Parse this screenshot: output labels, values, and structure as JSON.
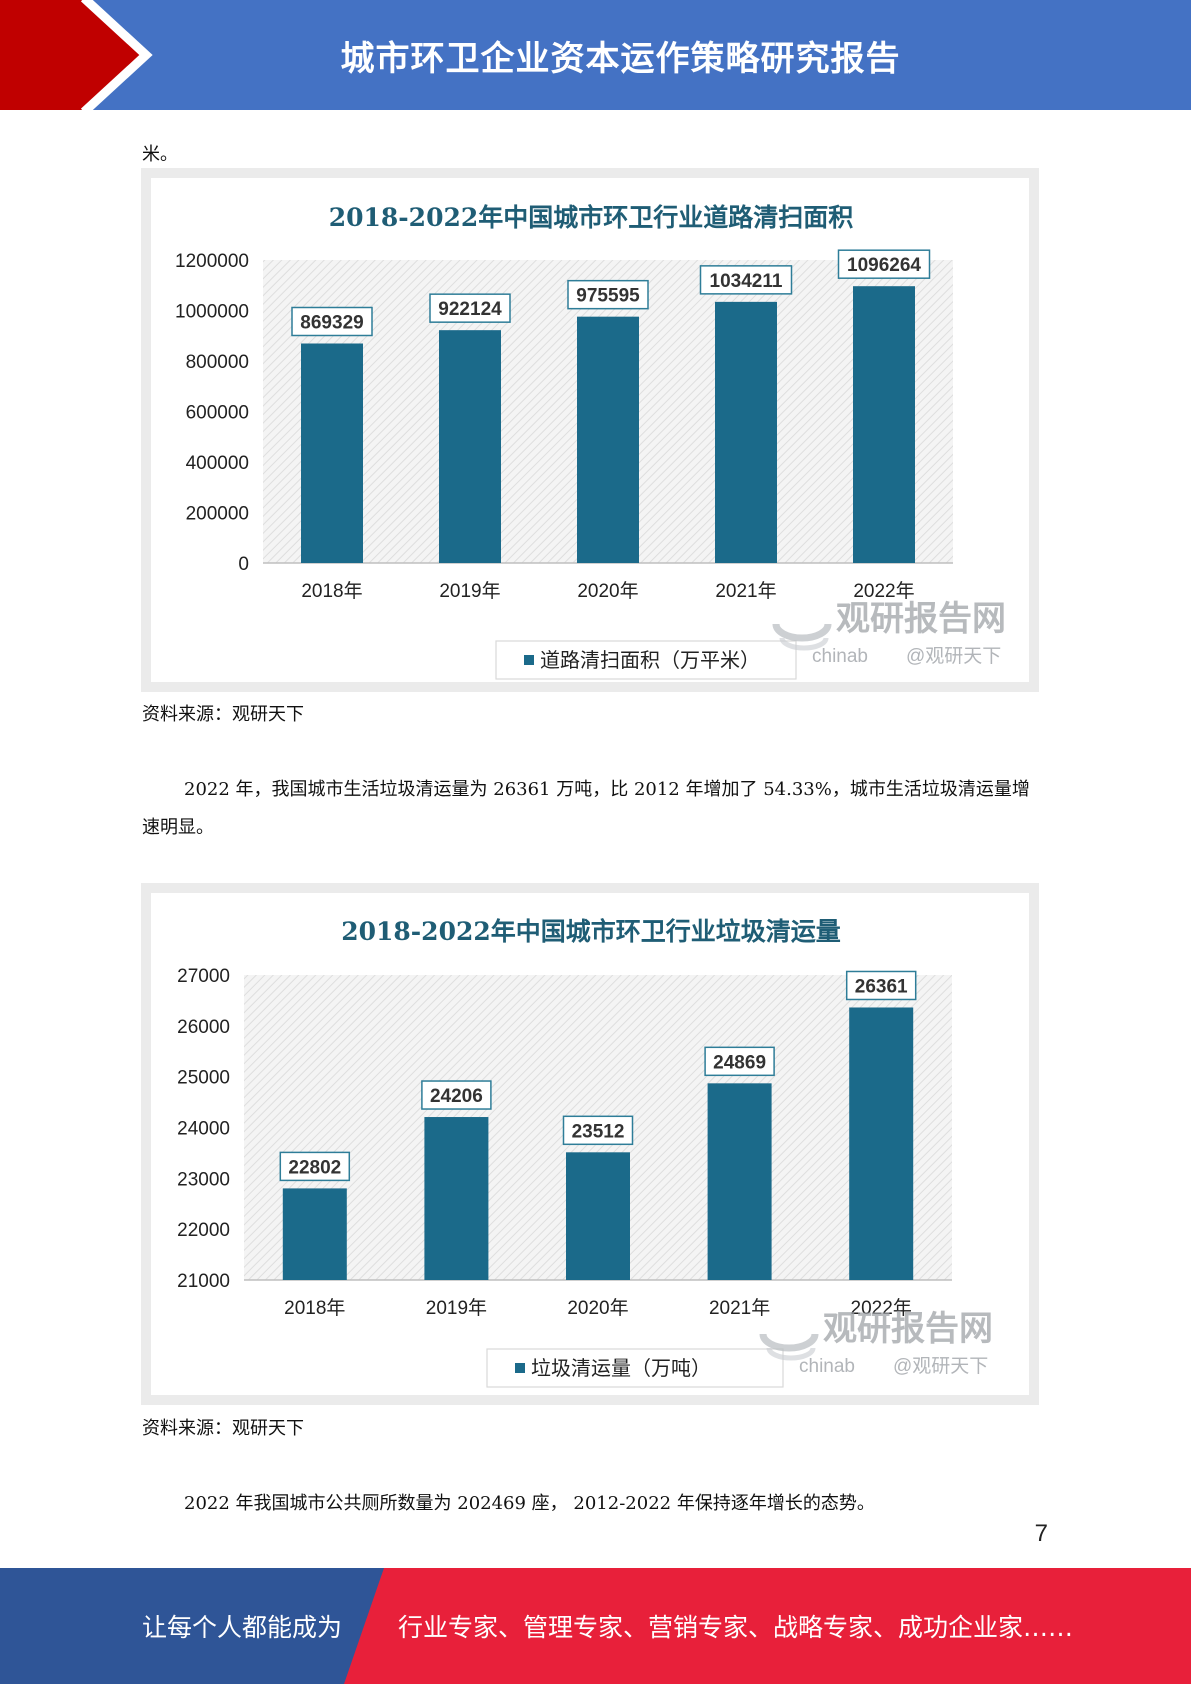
{
  "header": {
    "title": "城市环卫企业资本运作策略研究报告"
  },
  "fragment_text": "米。",
  "chart1": {
    "source": "资料来源：观研天下"
  },
  "paragraph2": "2022 年，我国城市生活垃圾清运量为 26361 万吨，比 2012 年增加了 54.33%，城市生活垃圾清运量增速明显。",
  "chart2": {
    "source": "资料来源：观研天下"
  },
  "paragraph3": "2022 年我国城市公共厕所数量为 202469 座， 2012-2022 年保持逐年增长的态势。",
  "watermark": {
    "brand": "观研报告网",
    "site": "chinab",
    "handle": "@观研天下"
  },
  "page_number": "7",
  "footer": {
    "left": "让每个人都能成为",
    "right": "行业专家、管理专家、营销专家、战略专家、成功企业家……"
  },
  "colors": {
    "header_blue": "#4472c4",
    "header_red": "#c00000",
    "bar": "#1b6a8a",
    "footer_red": "#e8203a",
    "footer_blue": "#2f5597"
  },
  "chart_data": [
    {
      "type": "bar",
      "title": "2018-2022年中国城市环卫行业道路清扫面积",
      "categories": [
        "2018年",
        "2019年",
        "2020年",
        "2021年",
        "2022年"
      ],
      "series": [
        {
          "name": "道路清扫面积（万平米）",
          "values": [
            869329,
            922124,
            975595,
            1034211,
            1096264
          ]
        }
      ],
      "ylim": [
        0,
        1200000
      ],
      "yticks": [
        0,
        200000,
        400000,
        600000,
        800000,
        1000000,
        1200000
      ],
      "data_labels": true,
      "legend": "bottom"
    },
    {
      "type": "bar",
      "title": "2018-2022年中国城市环卫行业垃圾清运量",
      "categories": [
        "2018年",
        "2019年",
        "2020年",
        "2021年",
        "2022年"
      ],
      "series": [
        {
          "name": "垃圾清运量（万吨）",
          "values": [
            22802,
            24206,
            23512,
            24869,
            26361
          ]
        }
      ],
      "ylim": [
        21000,
        27000
      ],
      "yticks": [
        21000,
        22000,
        23000,
        24000,
        25000,
        26000,
        27000
      ],
      "data_labels": true,
      "legend": "bottom"
    }
  ]
}
